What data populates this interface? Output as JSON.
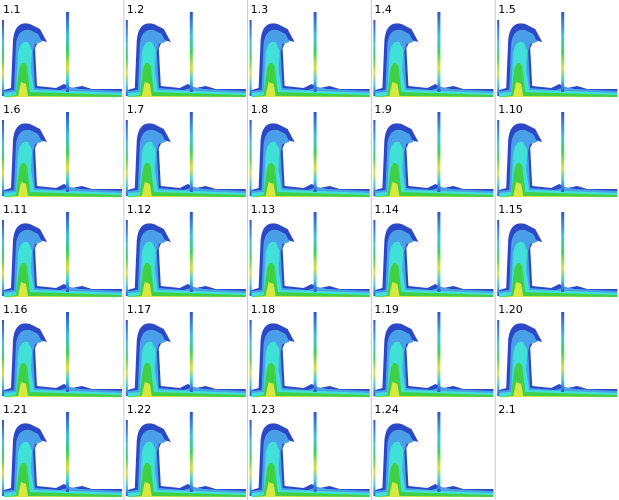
{
  "panels": [
    {
      "label": "1.1"
    },
    {
      "label": "1.2"
    },
    {
      "label": "1.3"
    },
    {
      "label": "1.4"
    },
    {
      "label": "1.5"
    },
    {
      "label": "1.6"
    },
    {
      "label": "1.7"
    },
    {
      "label": "1.8"
    },
    {
      "label": "1.9"
    },
    {
      "label": "1.10"
    },
    {
      "label": "1.11"
    },
    {
      "label": "1.12"
    },
    {
      "label": "1.13"
    },
    {
      "label": "1.14"
    },
    {
      "label": "1.15"
    },
    {
      "label": "1.16"
    },
    {
      "label": "1.17"
    },
    {
      "label": "1.18"
    },
    {
      "label": "1.19"
    },
    {
      "label": "1.20"
    },
    {
      "label": "1.21"
    },
    {
      "label": "1.22"
    },
    {
      "label": "1.23"
    },
    {
      "label": "1.24"
    },
    {
      "label": "2.1"
    }
  ]
}
